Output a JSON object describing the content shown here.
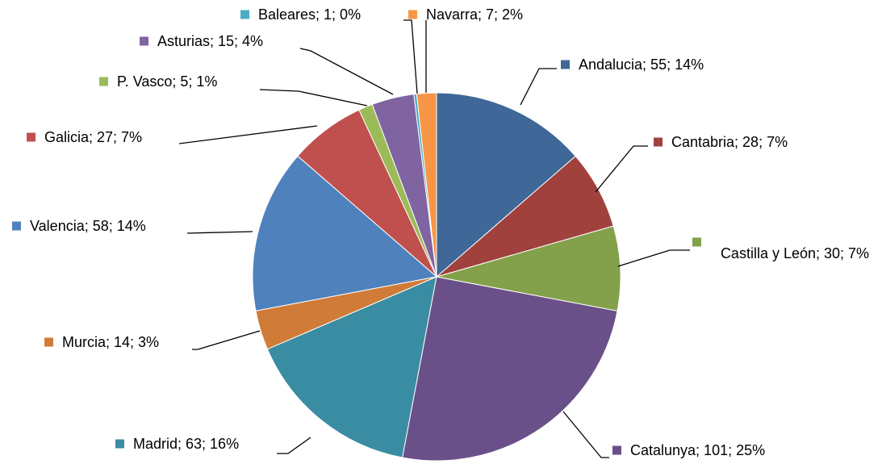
{
  "chart_data": {
    "type": "pie",
    "value_labels": [
      "Andalucia; 55; 14%",
      "Cantabria; 28; 7%",
      "Castilla y León; 30; 7%",
      "Catalunya; 101; 25%",
      "Madrid; 63; 16%",
      "Murcia; 14; 3%",
      "Valencia; 58; 14%",
      "Galicia; 27; 7%",
      "P. Vasco; 5; 1%",
      "Asturias; 15; 4%",
      "Baleares; 1; 0%",
      "Navarra; 7; 2%"
    ],
    "values": [
      55,
      28,
      30,
      101,
      63,
      14,
      58,
      27,
      5,
      15,
      1,
      7
    ],
    "colors": [
      "#3f6797",
      "#a0413d",
      "#83a04a",
      "#6a5088",
      "#3a8ca2",
      "#d07b38",
      "#4f81bd",
      "#c0504d",
      "#9bbb59",
      "#8064a2",
      "#4bacc6",
      "#f79646"
    ]
  }
}
